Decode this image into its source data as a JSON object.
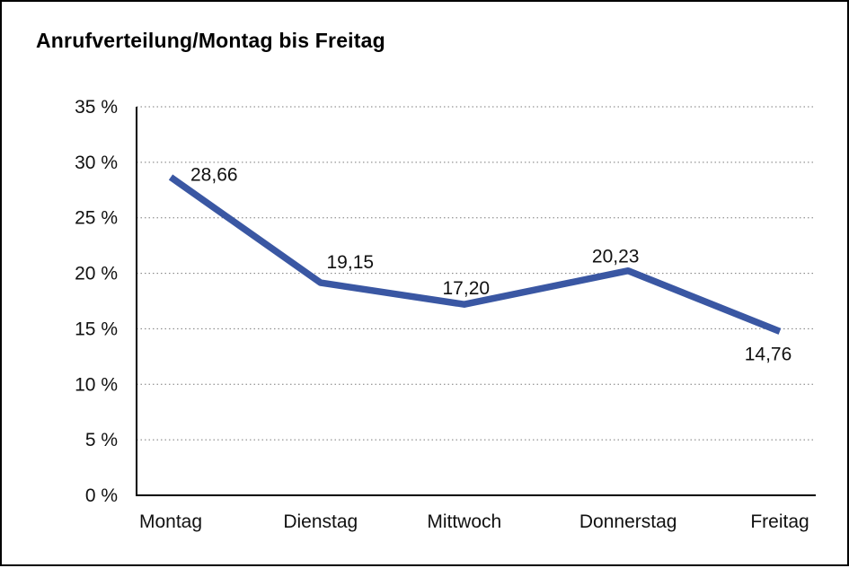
{
  "chart_data": {
    "type": "line",
    "title": "Anrufverteilung/Montag bis Freitag",
    "categories": [
      "Montag",
      "Dienstag",
      "Mittwoch",
      "Donnerstag",
      "Freitag"
    ],
    "series": [
      {
        "name": "Anrufverteilung",
        "values": [
          28.66,
          19.15,
          17.2,
          20.23,
          14.76
        ]
      }
    ],
    "value_labels": [
      "28,66",
      "19,15",
      "17,20",
      "20,23",
      "14,76"
    ],
    "xlabel": "",
    "ylabel": "",
    "ylim": [
      0,
      35
    ],
    "ytick_step": 5,
    "ytick_labels": [
      "0 %",
      "5 %",
      "10 %",
      "15 %",
      "20 %",
      "25 %",
      "30 %",
      "35 %"
    ],
    "grid": "horizontal-dotted",
    "legend_position": "none",
    "decimal_separator": ",",
    "colors": {
      "line": "#3A57A3",
      "axis": "#000000",
      "gridline": "#7a7a7a",
      "text": "#111111",
      "background": "#ffffff",
      "frame_border": "#000000"
    }
  }
}
